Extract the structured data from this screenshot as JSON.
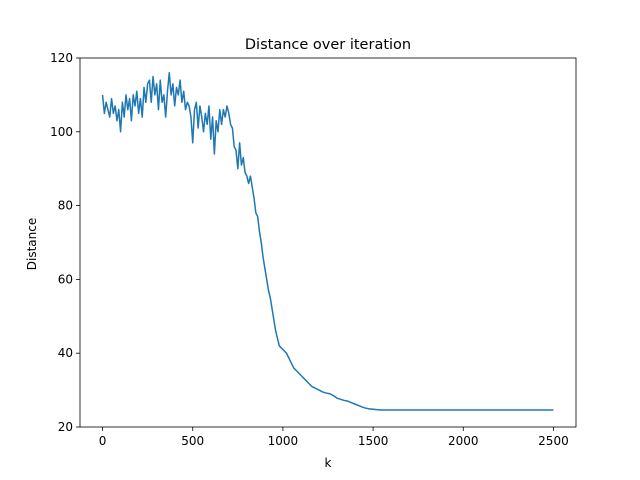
{
  "chart_data": {
    "type": "line",
    "title": "Distance over iteration",
    "xlabel": "k",
    "ylabel": "Distance",
    "xlim": [
      -125,
      2625
    ],
    "ylim": [
      20,
      120
    ],
    "grid": false,
    "legend": "none",
    "x_ticks": [
      0,
      500,
      1000,
      1500,
      2000,
      2500
    ],
    "y_ticks": [
      20,
      40,
      60,
      80,
      100,
      120
    ],
    "series": [
      {
        "color": "#1f77b4",
        "x": [
          0,
          10,
          20,
          30,
          40,
          50,
          60,
          70,
          80,
          90,
          100,
          110,
          120,
          130,
          140,
          150,
          160,
          170,
          180,
          190,
          200,
          210,
          220,
          230,
          240,
          250,
          260,
          270,
          280,
          290,
          300,
          310,
          320,
          330,
          340,
          350,
          360,
          370,
          380,
          390,
          400,
          410,
          420,
          430,
          440,
          450,
          460,
          470,
          480,
          490,
          500,
          510,
          520,
          530,
          540,
          550,
          560,
          570,
          580,
          590,
          600,
          610,
          620,
          630,
          640,
          650,
          660,
          670,
          680,
          690,
          700,
          710,
          720,
          730,
          740,
          750,
          760,
          770,
          780,
          790,
          800,
          810,
          820,
          830,
          840,
          850,
          860,
          870,
          880,
          890,
          900,
          910,
          920,
          930,
          940,
          950,
          960,
          970,
          980,
          990,
          1000,
          1010,
          1020,
          1030,
          1040,
          1050,
          1060,
          1080,
          1100,
          1120,
          1140,
          1160,
          1180,
          1200,
          1220,
          1240,
          1260,
          1280,
          1290,
          1300,
          1320,
          1340,
          1360,
          1380,
          1400,
          1420,
          1440,
          1460,
          1480,
          1500,
          1520,
          1540,
          1560,
          1580,
          1600,
          1700,
          1800,
          1900,
          2000,
          2100,
          2200,
          2300,
          2400,
          2500
        ],
        "y": [
          110,
          105,
          108,
          106,
          104,
          109,
          105,
          107,
          103,
          106,
          100,
          108,
          104,
          110,
          106,
          109,
          103,
          110,
          107,
          111,
          105,
          109,
          104,
          112,
          108,
          113,
          114,
          108,
          115,
          110,
          113,
          106,
          114,
          108,
          110,
          104,
          111,
          116,
          110,
          113,
          107,
          112,
          110,
          114,
          108,
          111,
          106,
          108,
          107,
          104,
          97,
          106,
          108,
          101,
          107,
          104,
          100,
          105,
          102,
          107,
          98,
          104,
          94,
          103,
          100,
          106,
          102,
          106,
          104,
          107,
          105,
          102,
          101,
          96,
          95,
          90,
          97,
          91,
          93,
          89,
          88,
          86,
          88,
          85,
          82,
          78,
          77,
          73,
          70,
          66,
          63,
          60,
          57,
          55,
          52,
          49,
          46,
          44,
          42,
          41.5,
          41,
          40.5,
          40,
          39,
          38,
          37,
          36,
          35,
          34,
          33,
          32,
          31,
          30.5,
          30,
          29.5,
          29.2,
          29,
          28.5,
          28.2,
          27.8,
          27.5,
          27.2,
          27,
          26.6,
          26.2,
          25.8,
          25.4,
          25.1,
          24.9,
          24.8,
          24.7,
          24.6,
          24.6,
          24.6,
          24.6,
          24.6,
          24.6,
          24.6,
          24.6,
          24.6,
          24.6,
          24.6,
          24.6,
          24.6
        ]
      }
    ]
  }
}
